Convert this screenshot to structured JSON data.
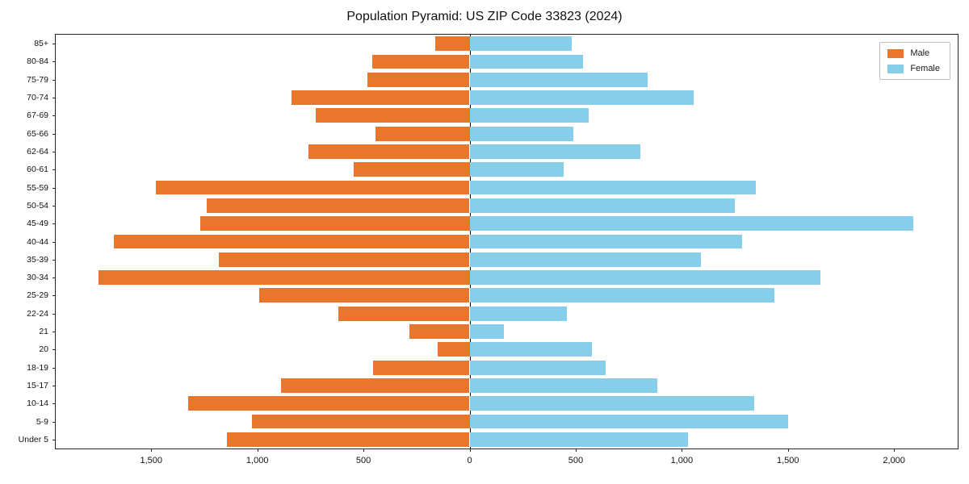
{
  "chart_data": {
    "type": "bar",
    "variant": "population-pyramid",
    "title": "Population Pyramid: US ZIP Code 33823 (2024)",
    "xlabel": "",
    "ylabel": "",
    "grid": false,
    "legend_position": "upper right",
    "xlim": [
      -1950,
      2300
    ],
    "x_ticks": [
      -1500,
      -1000,
      -500,
      0,
      500,
      1000,
      1500,
      2000
    ],
    "x_tick_labels": [
      "1,500",
      "1,000",
      "500",
      "0",
      "500",
      "1,000",
      "1,500",
      "2,000"
    ],
    "categories": [
      "85+",
      "80-84",
      "75-79",
      "70-74",
      "67-69",
      "65-66",
      "62-64",
      "60-61",
      "55-59",
      "50-54",
      "45-49",
      "40-44",
      "35-39",
      "30-34",
      "25-29",
      "22-24",
      "21",
      "20",
      "18-19",
      "15-17",
      "10-14",
      "5-9",
      "Under 5"
    ],
    "series": [
      {
        "name": "Male",
        "color": "#E8772D",
        "direction": "left",
        "values": [
          160,
          460,
          480,
          840,
          725,
          445,
          760,
          545,
          1480,
          1240,
          1270,
          1675,
          1180,
          1750,
          990,
          620,
          285,
          150,
          455,
          890,
          1325,
          1025,
          1145
        ]
      },
      {
        "name": "Female",
        "color": "#87CEEB",
        "direction": "right",
        "values": [
          480,
          535,
          840,
          1055,
          560,
          490,
          805,
          445,
          1350,
          1250,
          2090,
          1285,
          1090,
          1655,
          1435,
          460,
          160,
          575,
          640,
          885,
          1340,
          1500,
          1030
        ]
      }
    ]
  }
}
